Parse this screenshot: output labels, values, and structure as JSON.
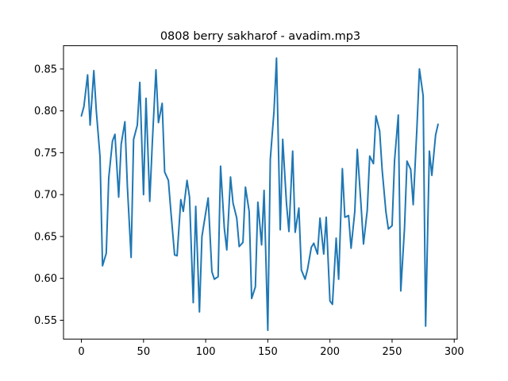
{
  "chart_data": {
    "type": "line",
    "title": "0808 berry sakharof - avadim.mp3",
    "xlabel": "",
    "ylabel": "",
    "xlim": [
      -14.4,
      302.4
    ],
    "ylim": [
      0.5275,
      0.8778
    ],
    "grid": false,
    "x_ticks": [
      0,
      50,
      100,
      150,
      200,
      250,
      300
    ],
    "y_ticks": [
      0.55,
      0.6,
      0.65,
      0.7,
      0.75,
      0.8,
      0.85
    ],
    "series": [
      {
        "color": "#1f77b4",
        "x": [
          0,
          2,
          5,
          7,
          10,
          12,
          15,
          17,
          20,
          22,
          25,
          27,
          30,
          32,
          35,
          37,
          40,
          42,
          45,
          47,
          50,
          52,
          55,
          57,
          60,
          62,
          65,
          67,
          70,
          72,
          75,
          77,
          80,
          82,
          85,
          87,
          90,
          92,
          95,
          97,
          100,
          102,
          105,
          107,
          110,
          112,
          115,
          117,
          120,
          122,
          125,
          127,
          130,
          132,
          135,
          137,
          140,
          142,
          145,
          147,
          150,
          152,
          155,
          157,
          160,
          162,
          165,
          167,
          170,
          172,
          175,
          177,
          180,
          182,
          185,
          187,
          190,
          192,
          195,
          197,
          200,
          202,
          205,
          207,
          210,
          212,
          215,
          217,
          220,
          222,
          225,
          227,
          230,
          232,
          235,
          237,
          240,
          242,
          245,
          247,
          250,
          252,
          255,
          257,
          260,
          262,
          265,
          267,
          270,
          272,
          275,
          277,
          280,
          282,
          285,
          287
        ],
        "y": [
          0.794,
          0.805,
          0.843,
          0.783,
          0.848,
          0.8,
          0.745,
          0.615,
          0.63,
          0.72,
          0.764,
          0.772,
          0.697,
          0.76,
          0.787,
          0.71,
          0.625,
          0.766,
          0.783,
          0.834,
          0.7,
          0.815,
          0.692,
          0.76,
          0.849,
          0.786,
          0.809,
          0.727,
          0.717,
          0.68,
          0.628,
          0.627,
          0.694,
          0.68,
          0.717,
          0.697,
          0.571,
          0.686,
          0.56,
          0.65,
          0.678,
          0.696,
          0.608,
          0.599,
          0.602,
          0.734,
          0.66,
          0.634,
          0.721,
          0.69,
          0.672,
          0.638,
          0.643,
          0.709,
          0.68,
          0.576,
          0.59,
          0.691,
          0.64,
          0.705,
          0.538,
          0.742,
          0.8,
          0.863,
          0.658,
          0.766,
          0.69,
          0.656,
          0.752,
          0.655,
          0.684,
          0.61,
          0.599,
          0.611,
          0.637,
          0.642,
          0.629,
          0.672,
          0.629,
          0.673,
          0.573,
          0.569,
          0.648,
          0.599,
          0.731,
          0.673,
          0.675,
          0.636,
          0.68,
          0.754,
          0.688,
          0.641,
          0.681,
          0.746,
          0.737,
          0.794,
          0.776,
          0.73,
          0.68,
          0.659,
          0.663,
          0.741,
          0.795,
          0.585,
          0.66,
          0.74,
          0.73,
          0.688,
          0.78,
          0.85,
          0.818,
          0.543,
          0.752,
          0.723,
          0.771,
          0.784
        ]
      }
    ]
  }
}
